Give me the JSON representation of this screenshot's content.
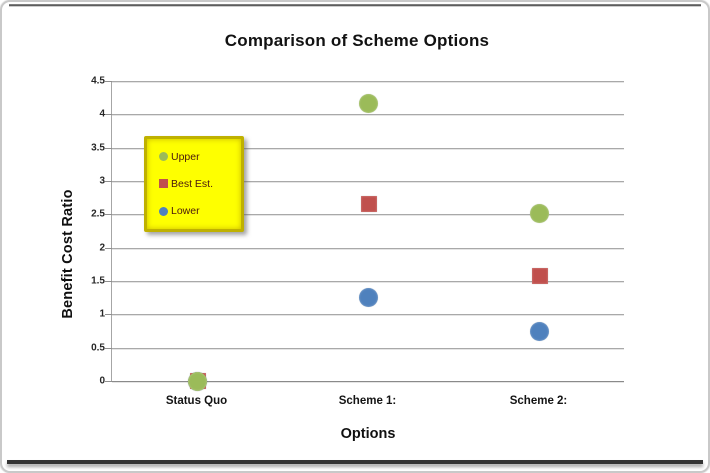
{
  "chart": {
    "title": "Comparison of Scheme Options",
    "y_axis_title": "Benefit Cost Ratio",
    "x_axis_title": "Options"
  },
  "legend": {
    "background": "#FEFF00",
    "border_color": "#BFB100",
    "items": [
      {
        "label": "Upper",
        "marker": "circle-icon",
        "color": "#9BBB59"
      },
      {
        "label": "Best Est.",
        "marker": "square-icon",
        "color": "#C0504D"
      },
      {
        "label": "Lower",
        "marker": "circle-icon",
        "color": "#4F81BD"
      }
    ]
  },
  "chart_data": {
    "type": "scatter",
    "title": "Comparison of Scheme Options",
    "xlabel": "Options",
    "ylabel": "Benefit Cost Ratio",
    "categories": [
      "Status Quo",
      "Scheme 1:",
      "Scheme 2:"
    ],
    "series": [
      {
        "name": "Upper",
        "marker": "circle",
        "color": "#9BBB59",
        "values": [
          0,
          4.17,
          2.52
        ]
      },
      {
        "name": "Best Est.",
        "marker": "square",
        "color": "#C0504D",
        "values": [
          0,
          2.65,
          1.57
        ]
      },
      {
        "name": "Lower",
        "marker": "circle",
        "color": "#4F81BD",
        "values": [
          0,
          1.25,
          0.75
        ]
      }
    ],
    "ylim": [
      0,
      4.5
    ],
    "yticks": [
      4.5,
      4,
      3.5,
      3,
      2.5,
      2,
      1.5,
      1,
      0.5,
      0
    ],
    "grid": "horizontal",
    "legend_position": "inside-left",
    "gridline_color": "#A9A9A9",
    "axis_color": "#8A8A8A"
  }
}
